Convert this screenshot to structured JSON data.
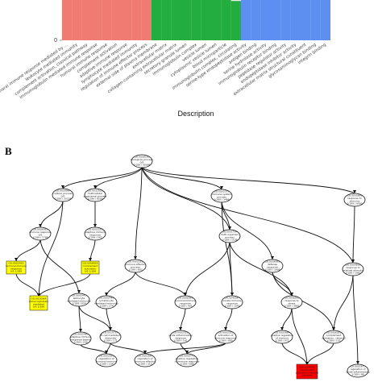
{
  "panel_b_label": "B",
  "chart_data": {
    "type": "bar",
    "xlabel": "Description",
    "ylabel": "",
    "y_ticks": [
      "0"
    ],
    "group_colors": {
      "group1": "#f07b72",
      "group2": "#22ad3e",
      "group3": "#5c8ff0"
    },
    "categories": [
      "humoral immune response mediated by ...",
      "leukocyte mediated immunity",
      "complement activation, classical pathway",
      "immunoglobulin mediated immune response",
      "humoral immune response",
      "complement activation",
      "adaptive immune response",
      "lymphocyte mediated immunity",
      "regulation of immune effector process",
      "external side of plasma membrane",
      "extracellular matrix",
      "collagen-containing extracellular matrix",
      "secretory granule lumen",
      "immunoglobulin complex",
      "vesicle lumen",
      "cytoplasmic vesicle lumen",
      "blood microparticle",
      "immunoglobulin complex, circulating",
      "serine-type endopeptidase activity",
      "antigen binding",
      "serine hydrolase activity",
      "immunoglobulin receptor binding",
      "peptidase regulator activity",
      "endopeptidase inhibitor activity",
      "extracellular matrix structural constituent",
      "glycosaminoglycan binding",
      "integrin binding"
    ],
    "groups": [
      "group1",
      "group1",
      "group1",
      "group1",
      "group1",
      "group1",
      "group1",
      "group1",
      "group1",
      "group2",
      "group2",
      "group2",
      "group2",
      "group2",
      "group2",
      "group2",
      "group2",
      "group2",
      "group3",
      "group3",
      "group3",
      "group3",
      "group3",
      "group3",
      "group3",
      "group3",
      "group3"
    ],
    "values": [
      10,
      10,
      10,
      10,
      10,
      10,
      10,
      10,
      10,
      10,
      10,
      10,
      10,
      10,
      10,
      9.6,
      8.4,
      8.0,
      10,
      10,
      10,
      10,
      10,
      10,
      9.0,
      9.0,
      8.9
    ],
    "ylim": [
      0,
      10.5
    ]
  },
  "dag": {
    "nodes": [
      {
        "id": "n0",
        "lines": [
          "GO:0008150",
          "biological_process",
          "0/5",
          "1/189 / 30906"
        ],
        "fill": "#ffffff"
      },
      {
        "id": "n1",
        "lines": [
          "GO:0009987",
          "cellular process",
          "0/5",
          "1/189 / 20226"
        ],
        "fill": "#ffffff"
      },
      {
        "id": "n2",
        "lines": [
          "GO:0032501",
          "multicellular",
          "organismal process",
          "1/189 / 8030"
        ],
        "fill": "#ffffff"
      },
      {
        "id": "n3",
        "lines": [
          "GO:0002376",
          "immune system",
          "process",
          "1/189 / 3466"
        ],
        "fill": "#ffffff"
      },
      {
        "id": "n4",
        "lines": [
          "GO:0050896",
          "response to",
          "stimulus",
          "1/189 / 9000"
        ],
        "fill": "#ffffff"
      },
      {
        "id": "n5",
        "lines": [
          "GO:0006955",
          "immune response",
          "0/5",
          "1/189 / 1764"
        ],
        "fill": "#ffffff"
      },
      {
        "id": "n6",
        "lines": [
          "GO:0002250",
          "adaptive immune",
          "response",
          "1/189 / 562"
        ],
        "fill": "#ffffff"
      },
      {
        "id": "n7",
        "lines": [
          "GO:0002455",
          "humoral immune",
          "response",
          "0/5 1/189"
        ],
        "fill": "#ffff00"
      },
      {
        "id": "n8",
        "lines": [
          "GO:0006956",
          "complement",
          "activation",
          "0/5 1/189"
        ],
        "fill": "#ffff00"
      },
      {
        "id": "n9",
        "lines": [
          "GO:0016064",
          "immunoglobulin",
          "mediated",
          "0/5 1/189"
        ],
        "fill": "#ffff00"
      },
      {
        "id": "n10",
        "lines": [
          "GO:0002252",
          "immune effector",
          "process",
          "1/189 / 663"
        ],
        "fill": "#ffffff"
      },
      {
        "id": "n11",
        "lines": [
          "GO:0051704",
          "multi-organism",
          "process",
          "1/189 / 1108"
        ],
        "fill": "#ffffff"
      },
      {
        "id": "n12",
        "lines": [
          "GO:0002443",
          "leukocyte",
          "mediated immunity",
          "1/189 / 824"
        ],
        "fill": "#ffffff"
      },
      {
        "id": "n13",
        "lines": [
          "GO:0006952",
          "defense",
          "response",
          "1/189 / 1606"
        ],
        "fill": "#ffffff"
      },
      {
        "id": "n14",
        "lines": [
          "GO:0009605",
          "response to",
          "external stimulus",
          "1/189 / 1962"
        ],
        "fill": "#ffffff"
      },
      {
        "id": "n15",
        "lines": [
          "GO:0002449",
          "lymphocyte",
          "mediated immunity",
          "1/189 / 274"
        ],
        "fill": "#ffffff"
      },
      {
        "id": "n16",
        "lines": [
          "GO:0006959",
          "humoral immune",
          "response",
          "1/189 / 401"
        ],
        "fill": "#ffffff"
      },
      {
        "id": "n17",
        "lines": [
          "GO:0045087",
          "innate immune",
          "response",
          "1/189 / 1040"
        ],
        "fill": "#ffffff"
      },
      {
        "id": "n18",
        "lines": [
          "GO:0006950",
          "response to",
          "stress",
          "1/189 / 3862"
        ],
        "fill": "#ffffff"
      },
      {
        "id": "n19",
        "lines": [
          "GO:0002460",
          "adaptive immune",
          "response based",
          "1/189 / 206"
        ],
        "fill": "#ffffff"
      },
      {
        "id": "n20",
        "lines": [
          "GO:0019724",
          "B cell mediated",
          "immunity",
          "1/189 / 171"
        ],
        "fill": "#ffffff"
      },
      {
        "id": "n21",
        "lines": [
          "GO:0002526",
          "acute inflammatory",
          "response",
          "1/189 / 161"
        ],
        "fill": "#ffffff"
      },
      {
        "id": "n22",
        "lines": [
          "GO:0002253",
          "activation of",
          "immune response",
          "1/189 / 680"
        ],
        "fill": "#ffffff"
      },
      {
        "id": "n23",
        "lines": [
          "GO:0002684",
          "positive regulation",
          "of immune",
          "1/189 / 971"
        ],
        "fill": "#ffffff"
      },
      {
        "id": "n24",
        "lines": [
          "GO:0006958",
          "complement",
          "activation, classical",
          "1/189 / 101"
        ],
        "fill": "#ffffff"
      },
      {
        "id": "n25",
        "lines": [
          "GO:0002920",
          "regulation of",
          "humoral immune",
          "1/189 / 104"
        ],
        "fill": "#ffffff"
      },
      {
        "id": "n26",
        "lines": [
          "GO:0002697",
          "regulation of",
          "immune effector",
          "1/189 / 313"
        ],
        "fill": "#ffffff"
      },
      {
        "id": "n27",
        "lines": [
          "GO:0050778",
          "positive regulation",
          "of immune response",
          "1/189 / 686"
        ],
        "fill": "#ffffff"
      },
      {
        "id": "n28",
        "lines": [
          "GO:0006958",
          "complement",
          "activation classical",
          "pathway"
        ],
        "fill": "#ff0000"
      },
      {
        "id": "n29",
        "lines": [
          "GO:0002673",
          "regulation of",
          "acute inflammatory",
          "1/189 / 88"
        ],
        "fill": "#ffffff"
      }
    ]
  }
}
